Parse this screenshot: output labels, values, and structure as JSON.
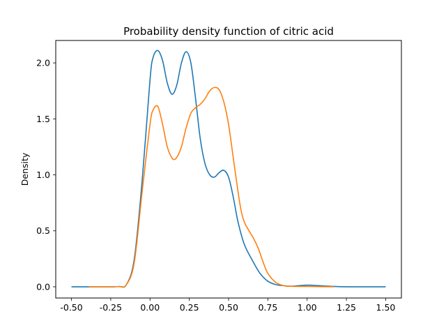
{
  "chart_data": {
    "type": "line",
    "title": "Probability density function of citric acid",
    "xlabel": "",
    "ylabel": "Density",
    "xlim": [
      -0.6,
      1.6
    ],
    "ylim": [
      -0.1,
      2.2
    ],
    "xticks": [
      "-0.50",
      "-0.25",
      "0.00",
      "0.25",
      "0.50",
      "0.75",
      "1.00",
      "1.25",
      "1.50"
    ],
    "yticks": [
      "0.0",
      "0.5",
      "1.0",
      "1.5",
      "2.0"
    ],
    "grid": false,
    "series": [
      {
        "color": "#1f77b4",
        "x": [
          -0.5,
          -0.3,
          -0.2,
          -0.15,
          -0.1,
          -0.05,
          0.0,
          0.02,
          0.05,
          0.08,
          0.11,
          0.14,
          0.17,
          0.2,
          0.23,
          0.26,
          0.29,
          0.32,
          0.35,
          0.38,
          0.41,
          0.44,
          0.47,
          0.5,
          0.53,
          0.56,
          0.6,
          0.65,
          0.7,
          0.75,
          0.8,
          0.85,
          0.9,
          1.0,
          1.1,
          1.2,
          1.3,
          1.4,
          1.5
        ],
        "y": [
          0.0,
          0.0,
          0.002,
          0.02,
          0.25,
          0.95,
          1.85,
          2.05,
          2.11,
          2.02,
          1.82,
          1.72,
          1.8,
          2.0,
          2.1,
          2.0,
          1.68,
          1.32,
          1.1,
          1.0,
          0.98,
          1.02,
          1.04,
          0.98,
          0.8,
          0.58,
          0.38,
          0.24,
          0.12,
          0.05,
          0.02,
          0.01,
          0.005,
          0.015,
          0.008,
          0.002,
          0.0,
          0.0,
          0.0
        ]
      },
      {
        "color": "#ff7f0e",
        "x": [
          -0.39,
          -0.3,
          -0.2,
          -0.15,
          -0.1,
          -0.05,
          0.0,
          0.02,
          0.05,
          0.08,
          0.11,
          0.14,
          0.16,
          0.18,
          0.2,
          0.23,
          0.26,
          0.29,
          0.32,
          0.35,
          0.38,
          0.41,
          0.44,
          0.47,
          0.5,
          0.53,
          0.56,
          0.58,
          0.6,
          0.63,
          0.66,
          0.69,
          0.72,
          0.75,
          0.8,
          0.85,
          0.9,
          1.0,
          1.1,
          1.17
        ],
        "y": [
          0.0,
          0.0,
          0.002,
          0.02,
          0.22,
          0.85,
          1.45,
          1.58,
          1.61,
          1.45,
          1.25,
          1.15,
          1.14,
          1.18,
          1.25,
          1.42,
          1.55,
          1.6,
          1.63,
          1.68,
          1.75,
          1.78,
          1.76,
          1.65,
          1.45,
          1.15,
          0.85,
          0.68,
          0.58,
          0.5,
          0.43,
          0.34,
          0.22,
          0.12,
          0.04,
          0.01,
          0.005,
          0.003,
          0.001,
          0.0
        ]
      }
    ]
  }
}
